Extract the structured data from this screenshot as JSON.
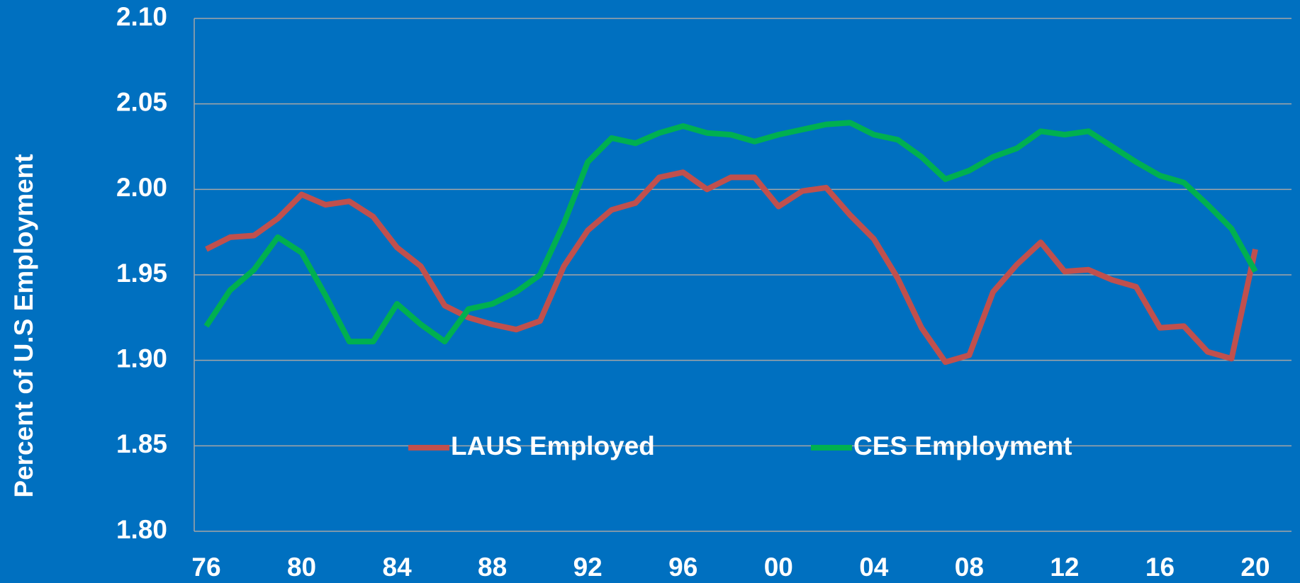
{
  "chart_data": {
    "type": "line",
    "y_label": "Percent of U.S Employment",
    "categories": [
      "76",
      null,
      null,
      null,
      "80",
      null,
      null,
      null,
      "84",
      null,
      null,
      null,
      "88",
      null,
      null,
      null,
      "92",
      null,
      null,
      null,
      "96",
      null,
      null,
      null,
      "00",
      null,
      null,
      null,
      "04",
      null,
      null,
      null,
      "08",
      null,
      null,
      null,
      "12",
      null,
      null,
      null,
      "16",
      null,
      null,
      null,
      "20"
    ],
    "series": [
      {
        "name": "LAUS Employed",
        "color": "#c0504d",
        "values": [
          1.965,
          1.972,
          1.973,
          1.983,
          1.997,
          1.991,
          1.993,
          1.984,
          1.966,
          1.955,
          1.932,
          1.925,
          1.921,
          1.918,
          1.923,
          1.955,
          1.976,
          1.988,
          1.992,
          2.007,
          2.01,
          2.0,
          2.007,
          2.007,
          1.99,
          1.999,
          2.001,
          1.985,
          1.971,
          1.948,
          1.919,
          1.899,
          1.903,
          1.94,
          1.956,
          1.969,
          1.952,
          1.953,
          1.947,
          1.943,
          1.919,
          1.92,
          1.905,
          1.901,
          1.965
        ]
      },
      {
        "name": "CES Employment",
        "color": "#00b050",
        "values": [
          1.92,
          1.941,
          1.953,
          1.972,
          1.963,
          1.938,
          1.911,
          1.911,
          1.933,
          1.921,
          1.911,
          1.93,
          1.933,
          1.94,
          1.95,
          1.98,
          2.016,
          2.03,
          2.027,
          2.033,
          2.037,
          2.033,
          2.032,
          2.028,
          2.032,
          2.035,
          2.038,
          2.039,
          2.032,
          2.029,
          2.019,
          2.006,
          2.011,
          2.019,
          2.024,
          2.034,
          2.032,
          2.034,
          2.025,
          2.016,
          2.008,
          2.004,
          1.991,
          1.977,
          1.952
        ]
      }
    ],
    "ylim": [
      1.8,
      2.1
    ],
    "yticks": [
      {
        "value": 1.8,
        "label": "1.80"
      },
      1.85,
      {
        "value": 1.9,
        "label": "1.90"
      },
      1.95,
      {
        "value": 2.0,
        "label": "2.00"
      },
      2.05,
      {
        "value": 2.1,
        "label": "2.10"
      }
    ],
    "grid": true,
    "legend": "center"
  }
}
